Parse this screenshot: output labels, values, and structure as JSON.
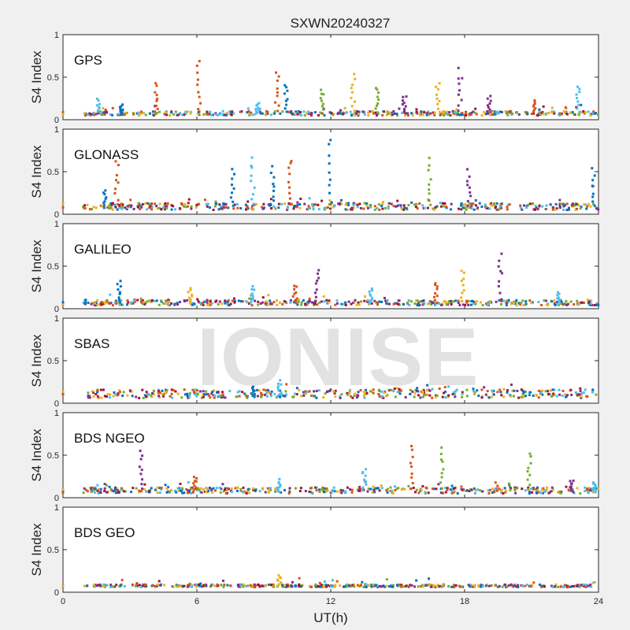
{
  "chart_data": {
    "type": "scatter",
    "title": "SXWN20240327",
    "xlabel": "UT(h)",
    "ylabel": "S4 Index",
    "xlim": [
      0,
      24
    ],
    "xticks": [
      "0",
      "6",
      "12",
      "18",
      "24"
    ],
    "ylim": [
      0,
      1
    ],
    "yticks": [
      "0",
      "0.5",
      "1"
    ],
    "grid": false,
    "series_colors": [
      "#0072BD",
      "#D95319",
      "#EDB120",
      "#7E2F8E",
      "#77AC30",
      "#4DBEEE",
      "#A2142F"
    ],
    "panels": [
      {
        "label": "GPS",
        "baseline": [
          0.05,
          0.1
        ],
        "peaks": [
          {
            "x": 1.6,
            "y": 0.25,
            "color": 5
          },
          {
            "x": 2.6,
            "y": 0.18,
            "color": 0
          },
          {
            "x": 4.2,
            "y": 0.45,
            "color": 1
          },
          {
            "x": 6.1,
            "y": 0.75,
            "color": 1
          },
          {
            "x": 8.7,
            "y": 0.2,
            "color": 5
          },
          {
            "x": 9.6,
            "y": 0.58,
            "color": 1
          },
          {
            "x": 10.0,
            "y": 0.45,
            "color": 0
          },
          {
            "x": 11.6,
            "y": 0.38,
            "color": 4
          },
          {
            "x": 13.0,
            "y": 0.55,
            "color": 2
          },
          {
            "x": 14.1,
            "y": 0.42,
            "color": 4
          },
          {
            "x": 15.3,
            "y": 0.3,
            "color": 3
          },
          {
            "x": 16.8,
            "y": 0.45,
            "color": 2
          },
          {
            "x": 17.8,
            "y": 0.62,
            "color": 3
          },
          {
            "x": 19.1,
            "y": 0.28,
            "color": 3
          },
          {
            "x": 21.1,
            "y": 0.25,
            "color": 1
          },
          {
            "x": 23.1,
            "y": 0.44,
            "color": 5
          }
        ]
      },
      {
        "label": "GLONASS",
        "baseline": [
          0.05,
          0.13
        ],
        "peaks": [
          {
            "x": 1.9,
            "y": 0.3,
            "color": 0
          },
          {
            "x": 2.4,
            "y": 0.65,
            "color": 1
          },
          {
            "x": 7.6,
            "y": 0.55,
            "color": 0
          },
          {
            "x": 8.5,
            "y": 0.7,
            "color": 5
          },
          {
            "x": 9.4,
            "y": 0.58,
            "color": 0
          },
          {
            "x": 10.2,
            "y": 0.7,
            "color": 1
          },
          {
            "x": 12.0,
            "y": 0.95,
            "color": 0
          },
          {
            "x": 16.4,
            "y": 0.67,
            "color": 4
          },
          {
            "x": 18.2,
            "y": 0.55,
            "color": 3
          },
          {
            "x": 23.8,
            "y": 0.55,
            "color": 0
          }
        ]
      },
      {
        "label": "GALILEO",
        "baseline": [
          0.04,
          0.1
        ],
        "peaks": [
          {
            "x": 2.5,
            "y": 0.35,
            "color": 0
          },
          {
            "x": 5.7,
            "y": 0.25,
            "color": 2
          },
          {
            "x": 8.5,
            "y": 0.28,
            "color": 5
          },
          {
            "x": 10.4,
            "y": 0.3,
            "color": 1
          },
          {
            "x": 11.4,
            "y": 0.52,
            "color": 3
          },
          {
            "x": 13.8,
            "y": 0.25,
            "color": 5
          },
          {
            "x": 16.7,
            "y": 0.33,
            "color": 1
          },
          {
            "x": 17.9,
            "y": 0.48,
            "color": 2
          },
          {
            "x": 19.6,
            "y": 0.72,
            "color": 3
          },
          {
            "x": 22.2,
            "y": 0.2,
            "color": 5
          }
        ]
      },
      {
        "label": "SBAS",
        "baseline": [
          0.06,
          0.16
        ],
        "peaks": [
          {
            "x": 8.5,
            "y": 0.2,
            "color": 0
          },
          {
            "x": 9.7,
            "y": 0.28,
            "color": 5
          }
        ]
      },
      {
        "label": "BDS NGEO",
        "baseline": [
          0.05,
          0.12
        ],
        "peaks": [
          {
            "x": 3.5,
            "y": 0.58,
            "color": 3
          },
          {
            "x": 5.9,
            "y": 0.27,
            "color": 1
          },
          {
            "x": 9.7,
            "y": 0.22,
            "color": 5
          },
          {
            "x": 13.5,
            "y": 0.38,
            "color": 5
          },
          {
            "x": 15.6,
            "y": 0.63,
            "color": 1
          },
          {
            "x": 17.0,
            "y": 0.63,
            "color": 4
          },
          {
            "x": 20.9,
            "y": 0.55,
            "color": 4
          },
          {
            "x": 22.8,
            "y": 0.22,
            "color": 3
          },
          {
            "x": 23.8,
            "y": 0.2,
            "color": 5
          }
        ]
      },
      {
        "label": "BDS GEO",
        "baseline": [
          0.06,
          0.09
        ],
        "peaks": [
          {
            "x": 9.7,
            "y": 0.2,
            "color": 2
          }
        ]
      }
    ],
    "watermark": "IONISE"
  }
}
